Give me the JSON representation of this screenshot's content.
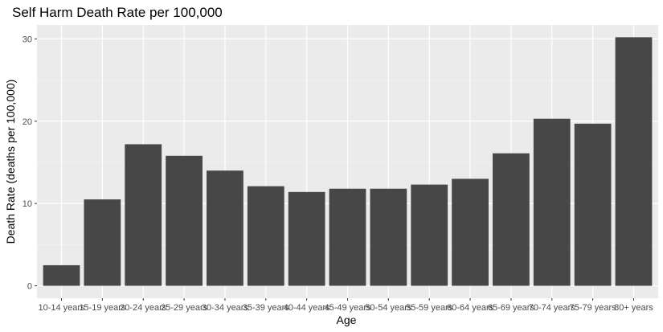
{
  "chart_data": {
    "type": "bar",
    "title": "Self Harm Death Rate per 100,000",
    "xlabel": "Age",
    "ylabel": "Death Rate (deaths per 100,000)",
    "categories": [
      "10-14 years",
      "15-19 years",
      "20-24 years",
      "25-29 years",
      "30-34 years",
      "35-39 years",
      "40-44 years",
      "45-49 years",
      "50-54 years",
      "55-59 years",
      "60-64 years",
      "65-69 years",
      "70-74 years",
      "75-79 years",
      "80+ years"
    ],
    "values": [
      2.5,
      10.5,
      17.2,
      15.8,
      14.0,
      12.1,
      11.4,
      11.8,
      11.8,
      12.3,
      13.0,
      16.1,
      20.3,
      19.7,
      30.2
    ],
    "ylim": [
      -1.51,
      31.7
    ],
    "yticks": [
      0,
      10,
      20,
      30
    ],
    "grid": true,
    "colors": {
      "panel": "#ebebeb",
      "grid_major": "#ffffff",
      "grid_minor": "#f5f5f5",
      "bar": "#474747",
      "tick_mark": "#333333"
    }
  }
}
